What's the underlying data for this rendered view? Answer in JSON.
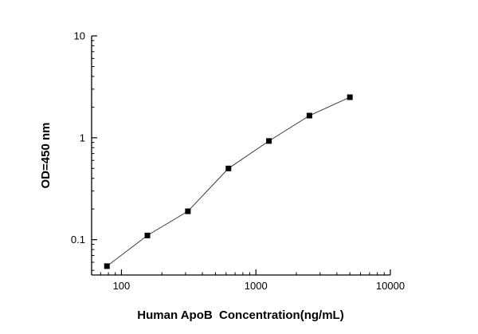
{
  "figure": {
    "background": "#ffffff"
  },
  "chart_data": {
    "type": "scatter",
    "connect_points": true,
    "x": [
      78,
      156,
      312,
      625,
      1250,
      2500,
      5000
    ],
    "y": [
      0.055,
      0.11,
      0.19,
      0.5,
      0.93,
      1.65,
      2.5
    ],
    "title": "",
    "xlabel": "Human ApoB  Concentration(ng/mL)",
    "ylabel": "OD=450 nm",
    "xscale": "log",
    "yscale": "log",
    "xlim": [
      60,
      10000
    ],
    "ylim": [
      0.045,
      10
    ],
    "x_major_ticks": [
      100,
      1000,
      10000
    ],
    "x_major_tick_labels": [
      "100",
      "1000",
      "10000"
    ],
    "y_major_ticks": [
      0.1,
      1,
      10
    ],
    "y_major_tick_labels": [
      "0.1",
      "1",
      "10"
    ],
    "grid": false,
    "legend": null,
    "marker": "filled-square",
    "marker_color": "#000000",
    "line_color": "#3a3a3a",
    "axis_color": "#000000"
  }
}
